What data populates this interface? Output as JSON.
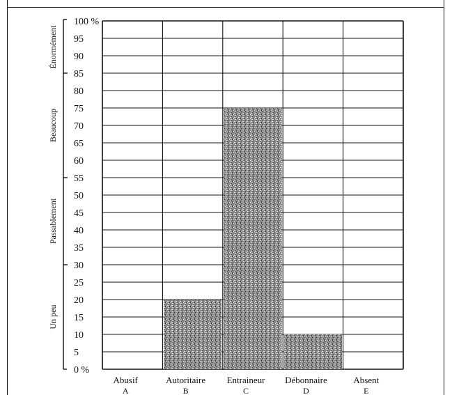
{
  "chart_data": {
    "type": "bar",
    "title": "",
    "xlabel": "",
    "ylabel": "",
    "ylim": [
      0,
      100
    ],
    "y_tick_labels": [
      "0 %",
      "5",
      "10",
      "15",
      "20",
      "25",
      "30",
      "35",
      "40",
      "45",
      "50",
      "55",
      "60",
      "65",
      "70",
      "75",
      "80",
      "85",
      "90",
      "95",
      "100 %"
    ],
    "categories": [
      {
        "name": "Abusif",
        "letter": "A"
      },
      {
        "name": "Autoritaire",
        "letter": "B"
      },
      {
        "name": "Entraineur",
        "letter": "C"
      },
      {
        "name": "Débonnaire",
        "letter": "D"
      },
      {
        "name": "Absent",
        "letter": "E"
      }
    ],
    "values": [
      0,
      20,
      75,
      10,
      0
    ],
    "grid": true,
    "bar_texture": "stippled gray",
    "colors": {
      "bar": "#9a9a9a",
      "grid": "#111111"
    },
    "band_labels": [
      {
        "label": "Un peu",
        "range": [
          0,
          30
        ]
      },
      {
        "label": "Passablement",
        "range": [
          30,
          55
        ]
      },
      {
        "label": "Beaucoup",
        "range": [
          55,
          85
        ]
      },
      {
        "label": "Énormément",
        "range": [
          85,
          100
        ]
      }
    ]
  }
}
